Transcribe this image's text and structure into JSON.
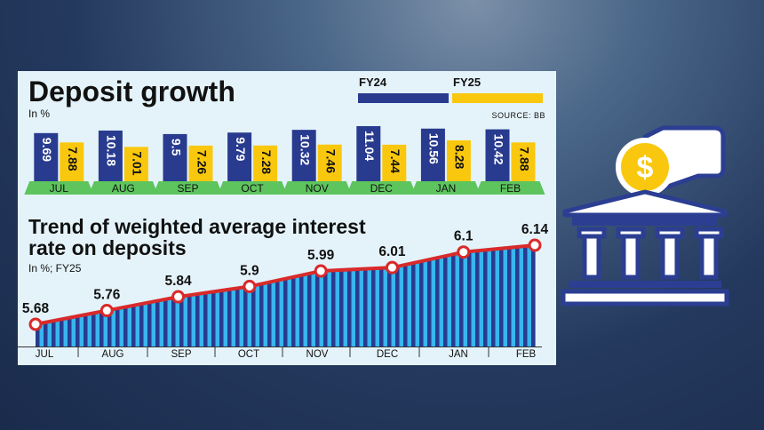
{
  "chart_data": [
    {
      "type": "bar",
      "title": "Deposit growth",
      "subtitle": "In %",
      "source": "SOURCE: BB",
      "categories": [
        "JUL",
        "AUG",
        "SEP",
        "OCT",
        "NOV",
        "DEC",
        "JAN",
        "FEB"
      ],
      "series": [
        {
          "name": "FY24",
          "color": "#283b8f",
          "values": [
            9.69,
            10.18,
            9.5,
            9.79,
            10.32,
            11.04,
            10.56,
            10.42
          ]
        },
        {
          "name": "FY25",
          "color": "#f9c80e",
          "values": [
            7.88,
            7.01,
            7.26,
            7.28,
            7.46,
            7.44,
            8.28,
            7.88
          ]
        }
      ],
      "value_labels": {
        "FY24": [
          "9.69",
          "10.18",
          "9.5",
          "9.79",
          "10.32",
          "11.04",
          "10.56",
          "10.42"
        ],
        "FY25": [
          "7.88",
          "7.01",
          "7.26",
          "7.28",
          "7.46",
          "7.44",
          "8.28",
          "7.88"
        ]
      },
      "category_tab_color": "#5ec45e"
    },
    {
      "type": "line",
      "title_lines": [
        "Trend of weighted average interest",
        "rate on deposits"
      ],
      "subtitle": "In %; FY25",
      "x": [
        "JUL",
        "AUG",
        "SEP",
        "OCT",
        "NOV",
        "DEC",
        "JAN",
        "FEB"
      ],
      "y": [
        5.68,
        5.76,
        5.84,
        5.9,
        5.99,
        6.01,
        6.1,
        6.14
      ],
      "value_labels": [
        "5.68",
        "5.76",
        "5.84",
        "5.9",
        "5.99",
        "6.01",
        "6.1",
        "6.14"
      ],
      "line_color": "#d92a2a",
      "fill_stripes": [
        "#283b8f",
        "#38b6ee"
      ]
    }
  ],
  "icon": {
    "name": "bank-coin-deposit",
    "coin_symbol": "$",
    "color": "#2b3e92",
    "coin_color": "#f9c80e"
  }
}
